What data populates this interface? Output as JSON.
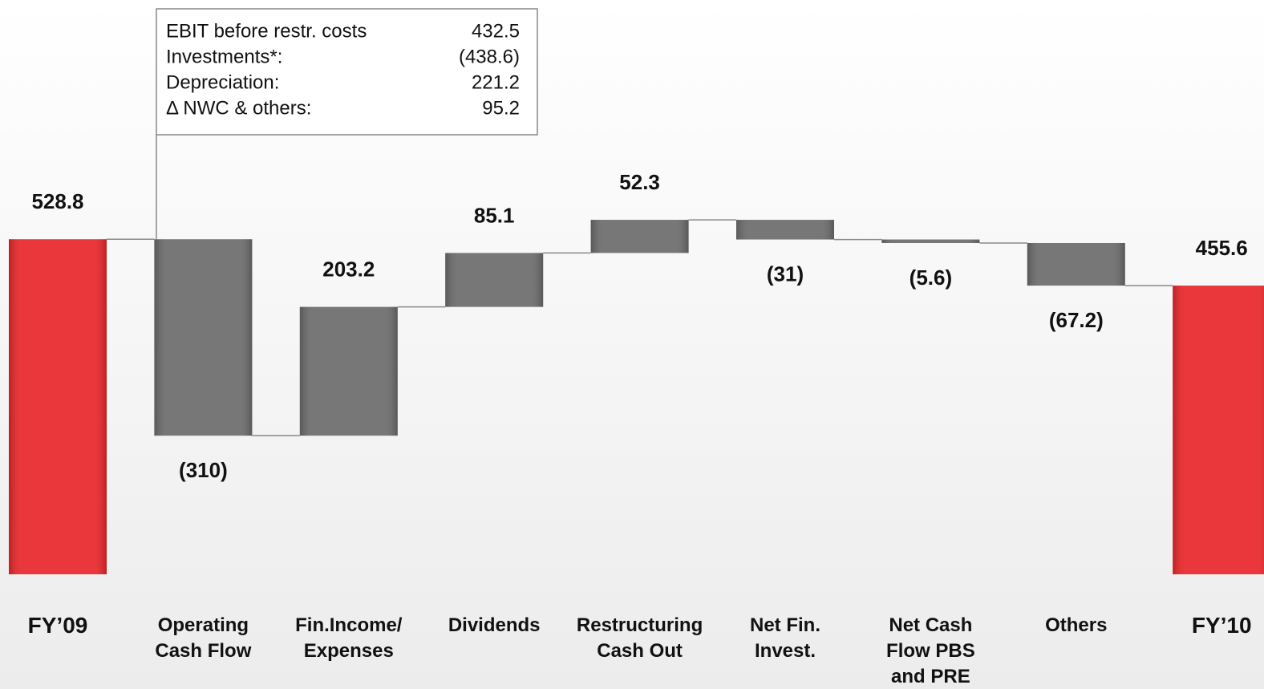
{
  "chart_data": {
    "type": "waterfall",
    "categories": [
      "FY’09",
      "Operating\nCash Flow",
      "Fin.Income/\nExpenses",
      "Dividends",
      "Restructuring\nCash Out",
      "Net Fin.\nInvest.",
      "Net Cash\nFlow PBS\nand PRE",
      "Others",
      "FY’10"
    ],
    "values": [
      528.8,
      -310,
      203.2,
      85.1,
      52.3,
      -31,
      -5.6,
      -67.2,
      455.6
    ],
    "value_labels": [
      "528.8",
      "(310)",
      "203.2",
      "85.1",
      "52.3",
      "(31)",
      "(5.6)",
      "(67.2)",
      "455.6"
    ],
    "colors": [
      "#e8262a",
      "#6b6b6b",
      "#6b6b6b",
      "#6b6b6b",
      "#6b6b6b",
      "#6b6b6b",
      "#6b6b6b",
      "#6b6b6b",
      "#e8262a"
    ],
    "annotation": {
      "rows": [
        {
          "label": "EBIT before restr. costs",
          "value": "432.5"
        },
        {
          "label": "Investments*:",
          "value": "(438.6)"
        },
        {
          "label": "Depreciation:",
          "value": "221.2"
        },
        {
          "label": "Δ NWC & others:",
          "value": "95.2"
        }
      ]
    }
  }
}
